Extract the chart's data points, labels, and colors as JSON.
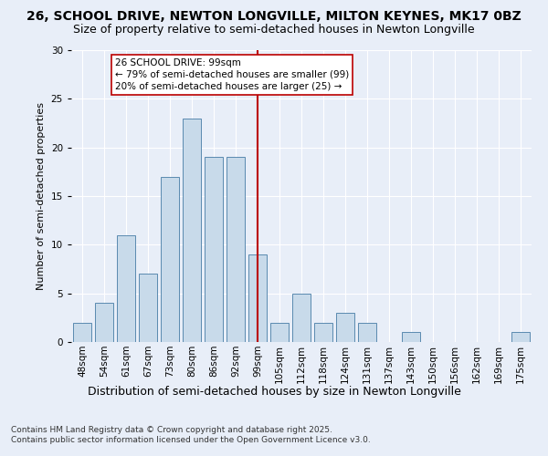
{
  "title_line1": "26, SCHOOL DRIVE, NEWTON LONGVILLE, MILTON KEYNES, MK17 0BZ",
  "title_line2": "Size of property relative to semi-detached houses in Newton Longville",
  "xlabel": "Distribution of semi-detached houses by size in Newton Longville",
  "ylabel": "Number of semi-detached properties",
  "categories": [
    "48sqm",
    "54sqm",
    "61sqm",
    "67sqm",
    "73sqm",
    "80sqm",
    "86sqm",
    "92sqm",
    "99sqm",
    "105sqm",
    "112sqm",
    "118sqm",
    "124sqm",
    "131sqm",
    "137sqm",
    "143sqm",
    "150sqm",
    "156sqm",
    "162sqm",
    "169sqm",
    "175sqm"
  ],
  "values": [
    2,
    4,
    11,
    7,
    17,
    23,
    19,
    19,
    9,
    2,
    5,
    2,
    3,
    2,
    0,
    1,
    0,
    0,
    0,
    0,
    1
  ],
  "bar_color": "#c8daea",
  "bar_edge_color": "#5a8ab0",
  "vline_x_index": 8,
  "vline_color": "#bb0000",
  "annotation_text": "26 SCHOOL DRIVE: 99sqm\n← 79% of semi-detached houses are smaller (99)\n20% of semi-detached houses are larger (25) →",
  "annotation_box_facecolor": "#ffffff",
  "annotation_box_edgecolor": "#bb0000",
  "ylim": [
    0,
    30
  ],
  "yticks": [
    0,
    5,
    10,
    15,
    20,
    25,
    30
  ],
  "background_color": "#e8eef8",
  "plot_bg_color": "#e8eef8",
  "grid_color": "#ffffff",
  "footer_text": "Contains HM Land Registry data © Crown copyright and database right 2025.\nContains public sector information licensed under the Open Government Licence v3.0.",
  "title_fontsize": 10,
  "subtitle_fontsize": 9,
  "ylabel_fontsize": 8,
  "xlabel_fontsize": 9,
  "tick_fontsize": 7.5,
  "annot_fontsize": 7.5,
  "footer_fontsize": 6.5
}
